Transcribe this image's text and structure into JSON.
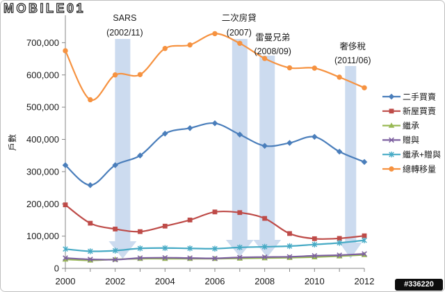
{
  "page": {
    "logo_text": "MOBILE01",
    "watermark": "#336220"
  },
  "chart_data": {
    "type": "line",
    "ylabel": "戶數",
    "x": [
      2000,
      2001,
      2002,
      2003,
      2004,
      2005,
      2006,
      2007,
      2008,
      2009,
      2010,
      2011,
      2012
    ],
    "x_tick_labels": [
      "2000",
      "2002",
      "2004",
      "2006",
      "2008",
      "2010",
      "2012"
    ],
    "y_tick_labels": [
      "0",
      "100,000",
      "200,000",
      "300,000",
      "400,000",
      "500,000",
      "600,000",
      "700,000"
    ],
    "xlim": [
      2000,
      2012
    ],
    "ylim": [
      0,
      800000
    ],
    "grid": false,
    "smooth": true,
    "legend": "right",
    "series": [
      {
        "name": "二手買賣",
        "color": "#4a7ebb",
        "marker": "diamond",
        "values": [
          320000,
          258000,
          320000,
          350000,
          418000,
          435000,
          450000,
          415000,
          380000,
          389000,
          408000,
          362000,
          330000
        ]
      },
      {
        "name": "新屋買賣",
        "color": "#be4b48",
        "marker": "square",
        "values": [
          197000,
          140000,
          122000,
          114000,
          131000,
          150000,
          175000,
          173000,
          155000,
          108000,
          92000,
          93000,
          101000
        ]
      },
      {
        "name": "繼承",
        "color": "#98b954",
        "marker": "triangle",
        "values": [
          28000,
          25000,
          28000,
          30000,
          30000,
          30000,
          30000,
          31000,
          32000,
          33000,
          35000,
          38000,
          42000
        ]
      },
      {
        "name": "贈與",
        "color": "#7d60a0",
        "marker": "x",
        "values": [
          32000,
          28000,
          27000,
          32000,
          33000,
          32000,
          31000,
          34000,
          35000,
          36000,
          39000,
          41000,
          45000
        ]
      },
      {
        "name": "繼承+贈與",
        "color": "#46aac5",
        "marker": "asterisk",
        "values": [
          60000,
          53000,
          55000,
          62000,
          63000,
          62000,
          61000,
          65000,
          67000,
          69000,
          74000,
          79000,
          87000
        ]
      },
      {
        "name": "總轉移量",
        "color": "#f69240",
        "marker": "circle",
        "values": [
          675000,
          523000,
          600000,
          601000,
          682000,
          693000,
          728000,
          698000,
          651000,
          622000,
          621000,
          593000,
          560000
        ]
      }
    ],
    "annotations": [
      {
        "label": "SARS",
        "date": "(2002/11)",
        "x": 2002.3
      },
      {
        "label": "二次房貸",
        "date": "(2007)",
        "x": 2007.0
      },
      {
        "label": "雷曼兄弟",
        "date": "(2008/09)",
        "x": 2008.1
      },
      {
        "label": "奢侈稅",
        "date": "(2011/06)",
        "x": 2011.45
      }
    ]
  }
}
